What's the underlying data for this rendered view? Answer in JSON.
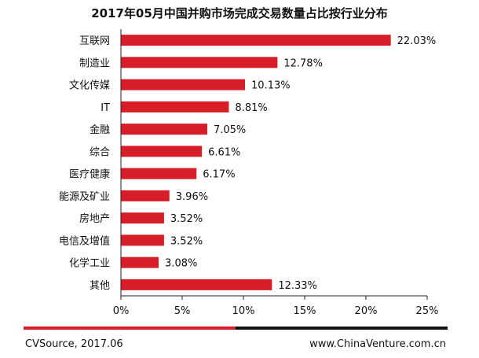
{
  "chart_data": {
    "type": "bar",
    "orientation": "horizontal",
    "title": "2017年05月中国并购市场完成交易数量占比按行业分布",
    "categories": [
      "互联网",
      "制造业",
      "文化传媒",
      "IT",
      "金融",
      "综合",
      "医疗健康",
      "能源及矿业",
      "房地产",
      "电信及增值",
      "化学工业",
      "其他"
    ],
    "values": [
      22.03,
      12.78,
      10.13,
      8.81,
      7.05,
      6.61,
      6.17,
      3.96,
      3.52,
      3.52,
      3.08,
      12.33
    ],
    "value_labels": [
      "22.03%",
      "12.78%",
      "10.13%",
      "8.81%",
      "7.05%",
      "6.61%",
      "6.17%",
      "3.96%",
      "3.52%",
      "3.52%",
      "3.08%",
      "12.33%"
    ],
    "xlim": [
      0,
      25
    ],
    "xticks": [
      0,
      5,
      10,
      15,
      20,
      25
    ],
    "xtick_labels": [
      "0%",
      "5%",
      "10%",
      "15%",
      "20%",
      "25%"
    ],
    "grid": false,
    "legend": "none",
    "bar_color": "#d71e28"
  },
  "footer": {
    "source": "CVSource, 2017.06",
    "website": "www.ChinaVenture.com.cn",
    "rule_color_left": "#d71e28",
    "rule_color_right": "#111111"
  }
}
